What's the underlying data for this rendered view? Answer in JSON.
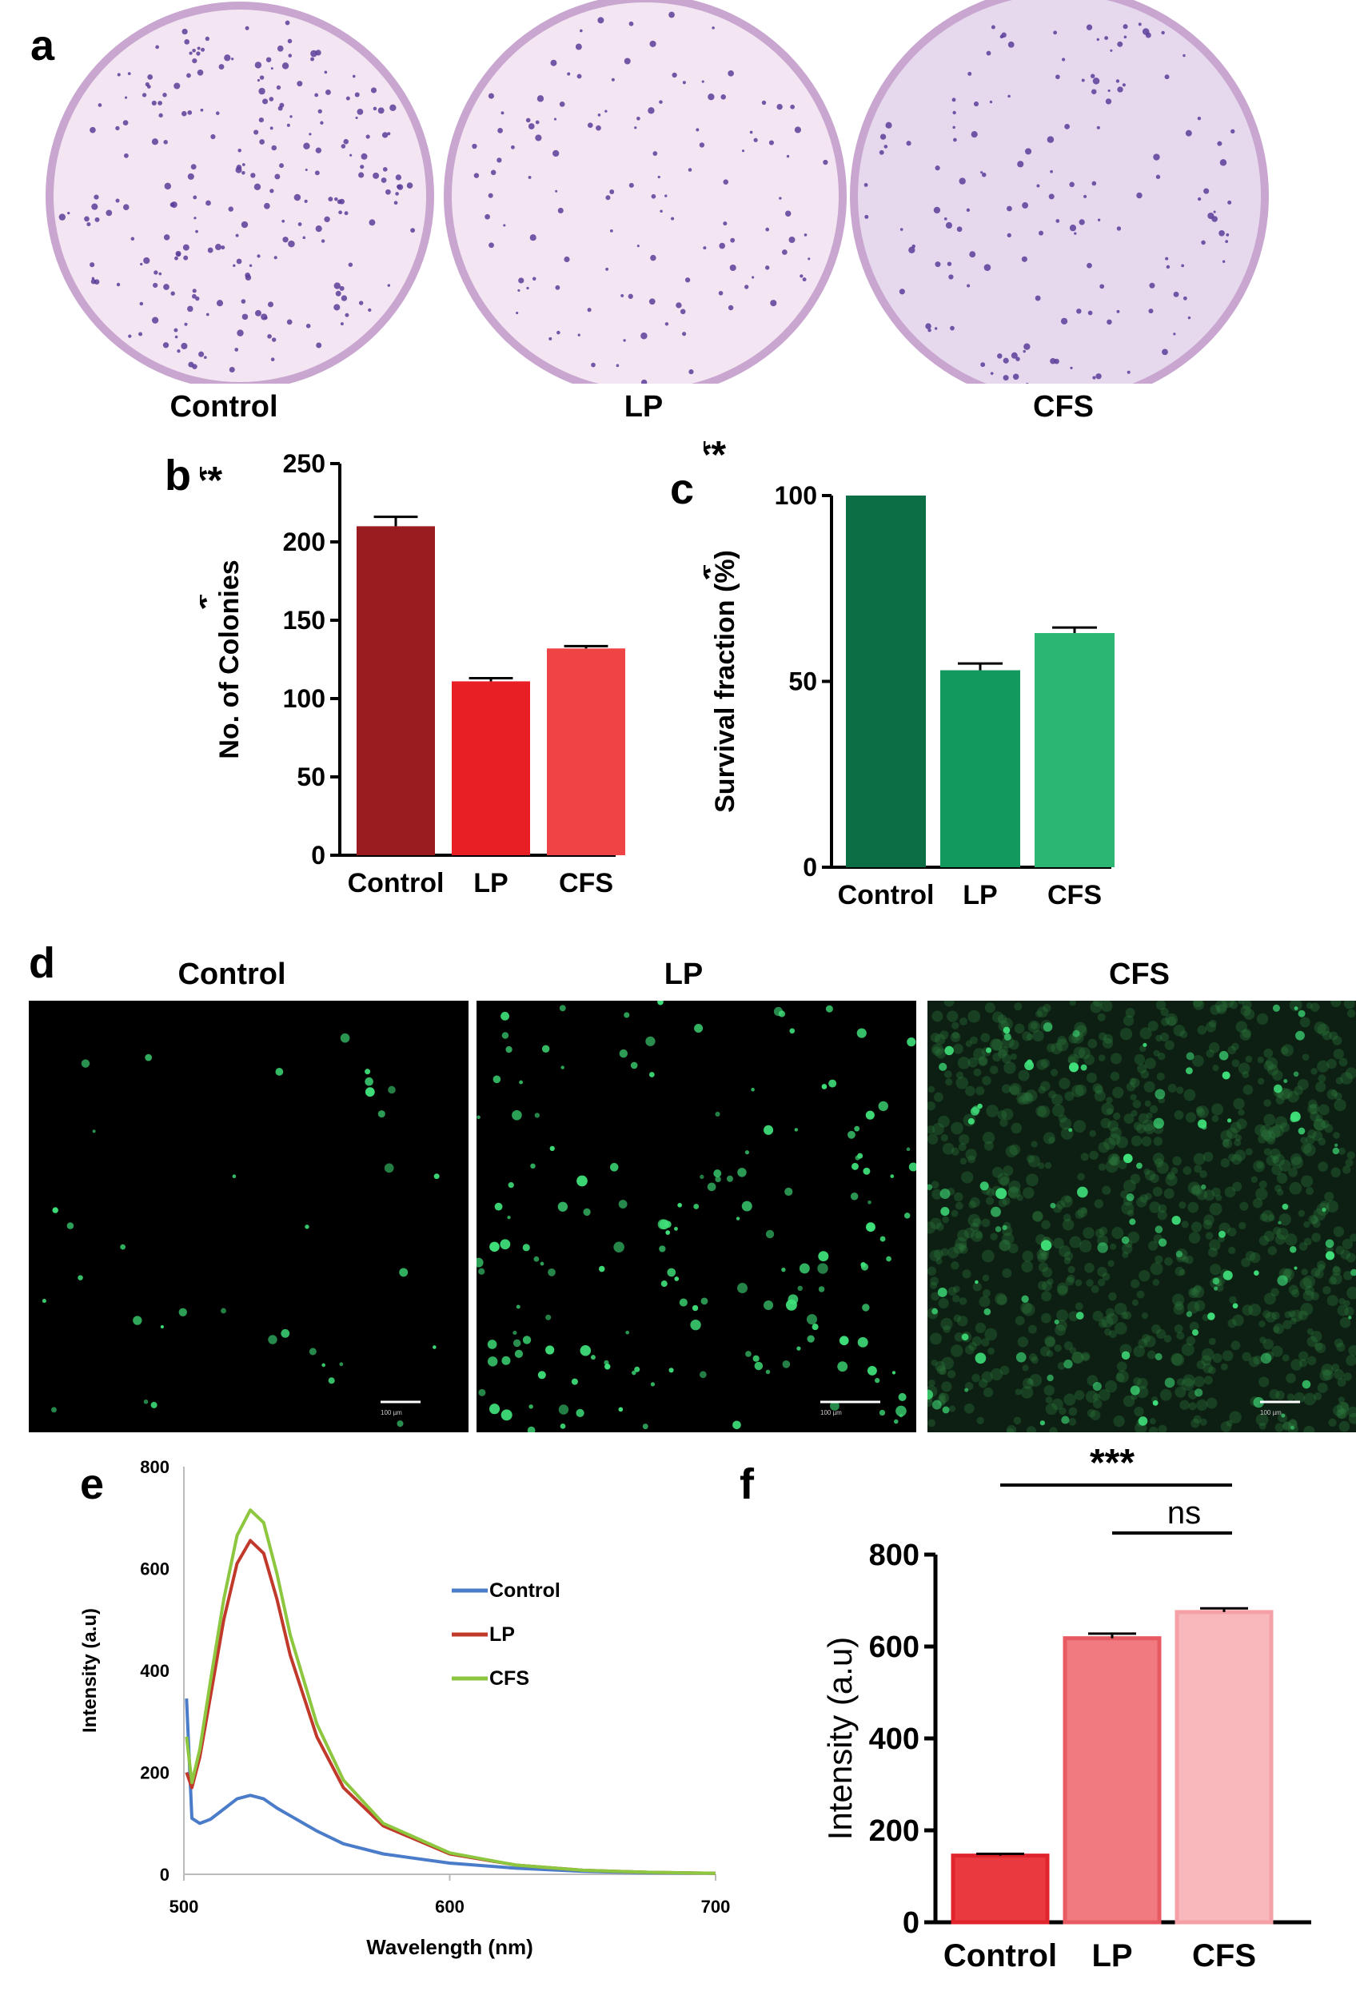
{
  "panels": {
    "a": {
      "letter": "a",
      "plates": [
        {
          "label": "Control",
          "colony_count": 210
        },
        {
          "label": "LP",
          "colony_count": 111
        },
        {
          "label": "CFS",
          "colony_count": 132
        }
      ]
    },
    "b": {
      "letter": "b"
    },
    "c": {
      "letter": "c"
    },
    "d": {
      "letter": "d",
      "images": [
        {
          "label": "Control",
          "scale_text": "100 µm"
        },
        {
          "label": "LP",
          "scale_text": "100 µm"
        },
        {
          "label": "CFS",
          "scale_text": "100 µm"
        }
      ]
    },
    "e": {
      "letter": "e"
    },
    "f": {
      "letter": "f"
    }
  },
  "colors": {
    "plate_rim": "#c9a6d0",
    "plate_fill": "#f3e6f2",
    "colony": "#5a3d9a",
    "fluor": "#3fe07a",
    "control_red": "#9b1c20",
    "lp_red": "#e82026",
    "cfs_red": "#ef4446",
    "control_green": "#0b6e44",
    "lp_green": "#129a5e",
    "cfs_green": "#2bb673",
    "line_control": "#4a7cc9",
    "line_lp": "#c0392b",
    "line_cfs": "#8dc63f",
    "f_control": "#ea3a40",
    "f_lp": "#f07a80",
    "f_cfs": "#f8b9bd"
  },
  "chart_data": [
    {
      "id": "b",
      "type": "bar",
      "categories": [
        "Control",
        "LP",
        "CFS"
      ],
      "values": [
        210,
        111,
        132
      ],
      "errors": [
        6,
        2,
        1.5
      ],
      "ylabel": "No. of Colonies",
      "ylim": [
        0,
        250
      ],
      "yticks": [
        0,
        50,
        100,
        150,
        200,
        250
      ],
      "significance": [
        {
          "from": "Control",
          "to": "CFS",
          "label": "***"
        },
        {
          "from": "LP",
          "to": "CFS",
          "label": "*"
        }
      ]
    },
    {
      "id": "c",
      "type": "bar",
      "categories": [
        "Control",
        "LP",
        "CFS"
      ],
      "values": [
        100,
        53,
        63
      ],
      "errors": [
        0,
        1.8,
        1.5
      ],
      "ylabel": "Survival fraction (%)",
      "ylim": [
        0,
        100
      ],
      "yticks": [
        0,
        50,
        100
      ],
      "significance": [
        {
          "from": "Control",
          "to": "CFS",
          "label": "***"
        },
        {
          "from": "LP",
          "to": "CFS",
          "label": "*"
        }
      ]
    },
    {
      "id": "e",
      "type": "line",
      "xlabel": "Wavelength (nm)",
      "ylabel": "Intensity (a.u)",
      "xlim": [
        500,
        700
      ],
      "ylim": [
        0,
        800
      ],
      "xticks": [
        500,
        600,
        700
      ],
      "yticks": [
        0,
        200,
        400,
        600,
        800
      ],
      "legend_position": "center-right",
      "series": [
        {
          "name": "Control",
          "x": [
            501,
            503,
            506,
            510,
            515,
            520,
            525,
            530,
            535,
            540,
            550,
            560,
            575,
            600,
            625,
            650,
            675,
            700
          ],
          "y": [
            345,
            110,
            100,
            108,
            128,
            148,
            155,
            148,
            130,
            115,
            85,
            60,
            40,
            22,
            12,
            6,
            3,
            2
          ]
        },
        {
          "name": "LP",
          "x": [
            501,
            503,
            506,
            510,
            515,
            520,
            525,
            530,
            535,
            540,
            550,
            560,
            575,
            600,
            625,
            650,
            675,
            700
          ],
          "y": [
            200,
            170,
            230,
            350,
            500,
            610,
            655,
            630,
            540,
            430,
            270,
            170,
            95,
            40,
            18,
            8,
            4,
            2
          ]
        },
        {
          "name": "CFS",
          "x": [
            501,
            503,
            506,
            510,
            515,
            520,
            525,
            530,
            535,
            540,
            550,
            560,
            575,
            600,
            625,
            650,
            675,
            700
          ],
          "y": [
            270,
            180,
            245,
            380,
            540,
            665,
            715,
            690,
            590,
            470,
            295,
            185,
            100,
            42,
            18,
            8,
            4,
            2
          ]
        }
      ]
    },
    {
      "id": "f",
      "type": "bar",
      "categories": [
        "Control",
        "LP",
        "CFS"
      ],
      "values": [
        145,
        618,
        675
      ],
      "errors": [
        4,
        10,
        8
      ],
      "ylabel": "Intensity (a.u)",
      "ylim": [
        0,
        800
      ],
      "yticks": [
        0,
        200,
        400,
        600,
        800
      ],
      "significance": [
        {
          "from": "Control",
          "to": "CFS",
          "label": "***"
        },
        {
          "from": "LP",
          "to": "CFS",
          "label": "ns"
        }
      ]
    }
  ]
}
